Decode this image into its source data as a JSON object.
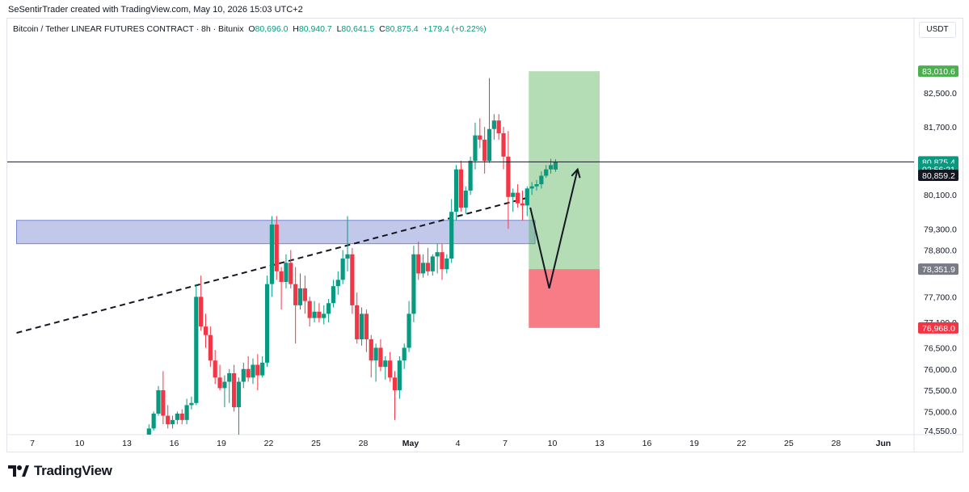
{
  "header": {
    "credit": "SeSentirTrader created with TradingView.com, May 10, 2026 15:03 UTC+2"
  },
  "symbol": {
    "name": "Bitcoin / Tether LINEAR FUTURES CONTRACT · 8h · Bitunix",
    "o_label": "O",
    "o": "80,696.0",
    "h_label": "H",
    "h": "80,940.7",
    "l_label": "L",
    "l": "80,641.5",
    "c_label": "C",
    "c": "80,875.4",
    "change": "+179.4 (+0.22%)"
  },
  "currency": "USDT",
  "brand": {
    "name": "TradingView"
  },
  "colors": {
    "up": "#089981",
    "down": "#f23645",
    "target": "#4caf50",
    "stop": "#f23645"
  },
  "chart_data": {
    "type": "candlestick",
    "interval": "8h",
    "y_ticks": [
      {
        "value": 82500,
        "label": "82,500.0"
      },
      {
        "value": 81700,
        "label": "81,700.0"
      },
      {
        "value": 80100,
        "label": "80,100.0"
      },
      {
        "value": 79300,
        "label": "79,300.0"
      },
      {
        "value": 78800,
        "label": "78,800.0"
      },
      {
        "value": 77700,
        "label": "77,700.0"
      },
      {
        "value": 77100,
        "label": "77,100.0"
      },
      {
        "value": 76500,
        "label": "76,500.0"
      },
      {
        "value": 76000,
        "label": "76,000.0"
      },
      {
        "value": 75500,
        "label": "75,500.0"
      },
      {
        "value": 75000,
        "label": "75,000.0"
      },
      {
        "value": 74550,
        "label": "74,550.0"
      }
    ],
    "x_ticks": [
      {
        "day": 7,
        "label": "7"
      },
      {
        "day": 10,
        "label": "10"
      },
      {
        "day": 13,
        "label": "13"
      },
      {
        "day": 16,
        "label": "16"
      },
      {
        "day": 19,
        "label": "19"
      },
      {
        "day": 22,
        "label": "22"
      },
      {
        "day": 25,
        "label": "25"
      },
      {
        "day": 28,
        "label": "28"
      },
      {
        "day": 31,
        "label": "May"
      },
      {
        "day": 34,
        "label": "4"
      },
      {
        "day": 37,
        "label": "7"
      },
      {
        "day": 40,
        "label": "10"
      },
      {
        "day": 43,
        "label": "13"
      },
      {
        "day": 46,
        "label": "16"
      },
      {
        "day": 49,
        "label": "19"
      },
      {
        "day": 52,
        "label": "22"
      },
      {
        "day": 55,
        "label": "25"
      },
      {
        "day": 58,
        "label": "28"
      },
      {
        "day": 61,
        "label": "Jun"
      }
    ],
    "price_labels": [
      {
        "value": 83010.6,
        "label": "83,010.6",
        "color": "#4caf50",
        "text_color": "#ffffff"
      },
      {
        "value": 80875.4,
        "label": "80,875.4",
        "color": "#089981",
        "text_color": "#ffffff"
      },
      {
        "value": 80705,
        "label": "02:56:21",
        "color": "#089981",
        "text_color": "#ffffff"
      },
      {
        "value": 80561,
        "label": "80,859.2",
        "color": "#131722",
        "text_color": "#ffffff"
      },
      {
        "value": 78351.9,
        "label": "78,351.9",
        "color": "#787b86",
        "text_color": "#ffffff"
      },
      {
        "value": 76968.0,
        "label": "76,968.0",
        "color": "#f23645",
        "text_color": "#ffffff"
      }
    ],
    "last_price": 80875.4,
    "position": {
      "entry": 78351.9,
      "target": 83010.6,
      "stop": 76968.0,
      "day_start": 38.5,
      "day_end": 43.0
    },
    "support_zone": {
      "top": 79500,
      "bottom": 78950,
      "day_start": 6.0,
      "day_end": 38.9
    },
    "trendline": [
      {
        "day": 6.0,
        "price": 76850
      },
      {
        "day": 38.6,
        "price": 80050
      }
    ],
    "projection": [
      {
        "day": 38.6,
        "price": 79800
      },
      {
        "day": 39.8,
        "price": 77900
      },
      {
        "day": 41.6,
        "price": 80700
      }
    ],
    "candles": [
      {
        "day": 14.4,
        "o": 74400,
        "h": 74700,
        "l": 74350,
        "c": 74600
      },
      {
        "day": 14.7,
        "o": 74600,
        "h": 75000,
        "l": 74550,
        "c": 74950
      },
      {
        "day": 15.0,
        "o": 74950,
        "h": 75600,
        "l": 74900,
        "c": 75500
      },
      {
        "day": 15.3,
        "o": 75500,
        "h": 75950,
        "l": 74700,
        "c": 74900
      },
      {
        "day": 15.6,
        "o": 74900,
        "h": 75150,
        "l": 74600,
        "c": 74700
      },
      {
        "day": 15.9,
        "o": 74700,
        "h": 74900,
        "l": 74600,
        "c": 74800
      },
      {
        "day": 16.2,
        "o": 74800,
        "h": 75000,
        "l": 74700,
        "c": 74950
      },
      {
        "day": 16.5,
        "o": 74950,
        "h": 75050,
        "l": 74700,
        "c": 74800
      },
      {
        "day": 16.8,
        "o": 74800,
        "h": 75300,
        "l": 74700,
        "c": 75150
      },
      {
        "day": 17.1,
        "o": 75150,
        "h": 75350,
        "l": 75050,
        "c": 75200
      },
      {
        "day": 17.4,
        "o": 75200,
        "h": 78000,
        "l": 75150,
        "c": 77700
      },
      {
        "day": 17.7,
        "o": 77700,
        "h": 78200,
        "l": 76900,
        "c": 77000
      },
      {
        "day": 18.0,
        "o": 77000,
        "h": 77300,
        "l": 76500,
        "c": 76800
      },
      {
        "day": 18.3,
        "o": 76800,
        "h": 77000,
        "l": 76050,
        "c": 76200
      },
      {
        "day": 18.6,
        "o": 76200,
        "h": 76450,
        "l": 75650,
        "c": 75800
      },
      {
        "day": 18.9,
        "o": 75800,
        "h": 76100,
        "l": 75500,
        "c": 75550
      },
      {
        "day": 19.2,
        "o": 75550,
        "h": 75850,
        "l": 75100,
        "c": 75700
      },
      {
        "day": 19.5,
        "o": 75700,
        "h": 76000,
        "l": 75200,
        "c": 75900
      },
      {
        "day": 19.8,
        "o": 75900,
        "h": 76100,
        "l": 75000,
        "c": 75100
      },
      {
        "day": 20.1,
        "o": 75100,
        "h": 75800,
        "l": 74400,
        "c": 75700
      },
      {
        "day": 20.4,
        "o": 75700,
        "h": 76150,
        "l": 75550,
        "c": 76000
      },
      {
        "day": 20.7,
        "o": 76000,
        "h": 76300,
        "l": 75700,
        "c": 75800
      },
      {
        "day": 21.0,
        "o": 75800,
        "h": 76250,
        "l": 75650,
        "c": 76100
      },
      {
        "day": 21.3,
        "o": 76100,
        "h": 76350,
        "l": 75500,
        "c": 75850
      },
      {
        "day": 21.6,
        "o": 75850,
        "h": 76300,
        "l": 75800,
        "c": 76150
      },
      {
        "day": 21.9,
        "o": 76150,
        "h": 78200,
        "l": 76050,
        "c": 78000
      },
      {
        "day": 22.2,
        "o": 78000,
        "h": 79600,
        "l": 77700,
        "c": 79400
      },
      {
        "day": 22.5,
        "o": 79400,
        "h": 79600,
        "l": 78100,
        "c": 78300
      },
      {
        "day": 22.8,
        "o": 78300,
        "h": 78400,
        "l": 77400,
        "c": 78050
      },
      {
        "day": 23.1,
        "o": 78050,
        "h": 78700,
        "l": 77900,
        "c": 78500
      },
      {
        "day": 23.4,
        "o": 78500,
        "h": 78800,
        "l": 77900,
        "c": 78000
      },
      {
        "day": 23.7,
        "o": 78000,
        "h": 78400,
        "l": 76600,
        "c": 77500
      },
      {
        "day": 24.0,
        "o": 77500,
        "h": 78250,
        "l": 77400,
        "c": 77900
      },
      {
        "day": 24.3,
        "o": 77900,
        "h": 78200,
        "l": 77300,
        "c": 77600
      },
      {
        "day": 24.6,
        "o": 77600,
        "h": 77700,
        "l": 77000,
        "c": 77200
      },
      {
        "day": 24.9,
        "o": 77200,
        "h": 77600,
        "l": 77100,
        "c": 77350
      },
      {
        "day": 25.2,
        "o": 77350,
        "h": 77550,
        "l": 77100,
        "c": 77200
      },
      {
        "day": 25.5,
        "o": 77200,
        "h": 77500,
        "l": 77050,
        "c": 77300
      },
      {
        "day": 25.8,
        "o": 77300,
        "h": 77650,
        "l": 77100,
        "c": 77550
      },
      {
        "day": 26.1,
        "o": 77550,
        "h": 78100,
        "l": 77450,
        "c": 77950
      },
      {
        "day": 26.4,
        "o": 77950,
        "h": 78300,
        "l": 77750,
        "c": 78100
      },
      {
        "day": 26.7,
        "o": 78100,
        "h": 78800,
        "l": 78000,
        "c": 78600
      },
      {
        "day": 27.0,
        "o": 78600,
        "h": 79600,
        "l": 78300,
        "c": 78700
      },
      {
        "day": 27.3,
        "o": 78700,
        "h": 78850,
        "l": 77300,
        "c": 77500
      },
      {
        "day": 27.6,
        "o": 77500,
        "h": 77800,
        "l": 76600,
        "c": 76700
      },
      {
        "day": 27.9,
        "o": 76700,
        "h": 77450,
        "l": 76550,
        "c": 77300
      },
      {
        "day": 28.2,
        "o": 77300,
        "h": 77400,
        "l": 76400,
        "c": 76700
      },
      {
        "day": 28.5,
        "o": 76700,
        "h": 76800,
        "l": 75800,
        "c": 76200
      },
      {
        "day": 28.8,
        "o": 76200,
        "h": 76600,
        "l": 75700,
        "c": 76500
      },
      {
        "day": 29.1,
        "o": 76500,
        "h": 76700,
        "l": 75950,
        "c": 76050
      },
      {
        "day": 29.4,
        "o": 76050,
        "h": 76300,
        "l": 75750,
        "c": 76200
      },
      {
        "day": 29.7,
        "o": 76200,
        "h": 76400,
        "l": 75700,
        "c": 75800
      },
      {
        "day": 30.0,
        "o": 75800,
        "h": 75950,
        "l": 74800,
        "c": 75500
      },
      {
        "day": 30.3,
        "o": 75500,
        "h": 76300,
        "l": 75300,
        "c": 76200
      },
      {
        "day": 30.6,
        "o": 76200,
        "h": 76600,
        "l": 76000,
        "c": 76500
      },
      {
        "day": 30.9,
        "o": 76500,
        "h": 77600,
        "l": 76400,
        "c": 77300
      },
      {
        "day": 31.2,
        "o": 77300,
        "h": 78900,
        "l": 77100,
        "c": 78700
      },
      {
        "day": 31.5,
        "o": 78700,
        "h": 79000,
        "l": 78100,
        "c": 78250
      },
      {
        "day": 31.8,
        "o": 78250,
        "h": 78700,
        "l": 78150,
        "c": 78500
      },
      {
        "day": 32.1,
        "o": 78500,
        "h": 78850,
        "l": 78200,
        "c": 78300
      },
      {
        "day": 32.4,
        "o": 78300,
        "h": 78700,
        "l": 78200,
        "c": 78650
      },
      {
        "day": 32.7,
        "o": 78650,
        "h": 78950,
        "l": 78250,
        "c": 78750
      },
      {
        "day": 33.0,
        "o": 78750,
        "h": 78950,
        "l": 78100,
        "c": 78350
      },
      {
        "day": 33.3,
        "o": 78350,
        "h": 78700,
        "l": 78250,
        "c": 78600
      },
      {
        "day": 33.6,
        "o": 78600,
        "h": 80000,
        "l": 78500,
        "c": 79700
      },
      {
        "day": 33.9,
        "o": 79700,
        "h": 80800,
        "l": 79500,
        "c": 80700
      },
      {
        "day": 34.2,
        "o": 80700,
        "h": 80900,
        "l": 79700,
        "c": 79800
      },
      {
        "day": 34.5,
        "o": 79800,
        "h": 80300,
        "l": 79650,
        "c": 80200
      },
      {
        "day": 34.8,
        "o": 80200,
        "h": 81000,
        "l": 80100,
        "c": 80900
      },
      {
        "day": 35.1,
        "o": 80900,
        "h": 81800,
        "l": 80700,
        "c": 81500
      },
      {
        "day": 35.4,
        "o": 81500,
        "h": 81900,
        "l": 81200,
        "c": 81400
      },
      {
        "day": 35.7,
        "o": 81400,
        "h": 81700,
        "l": 80600,
        "c": 80900
      },
      {
        "day": 36.0,
        "o": 80900,
        "h": 82850,
        "l": 80850,
        "c": 81650
      },
      {
        "day": 36.3,
        "o": 81650,
        "h": 82000,
        "l": 81400,
        "c": 81850
      },
      {
        "day": 36.6,
        "o": 81850,
        "h": 82000,
        "l": 81400,
        "c": 81550
      },
      {
        "day": 36.9,
        "o": 81550,
        "h": 81700,
        "l": 80700,
        "c": 81000
      },
      {
        "day": 37.2,
        "o": 81000,
        "h": 81600,
        "l": 79300,
        "c": 80050
      },
      {
        "day": 37.5,
        "o": 80050,
        "h": 80250,
        "l": 79700,
        "c": 80150
      },
      {
        "day": 37.8,
        "o": 80150,
        "h": 80350,
        "l": 79800,
        "c": 79900
      },
      {
        "day": 38.1,
        "o": 79900,
        "h": 80200,
        "l": 79500,
        "c": 79850
      },
      {
        "day": 38.4,
        "o": 79850,
        "h": 80300,
        "l": 79600,
        "c": 80250
      },
      {
        "day": 38.7,
        "o": 80250,
        "h": 80400,
        "l": 80100,
        "c": 80300
      },
      {
        "day": 39.0,
        "o": 80300,
        "h": 80450,
        "l": 80200,
        "c": 80350
      },
      {
        "day": 39.3,
        "o": 80350,
        "h": 80650,
        "l": 80250,
        "c": 80550
      },
      {
        "day": 39.6,
        "o": 80550,
        "h": 80800,
        "l": 80500,
        "c": 80700
      },
      {
        "day": 39.9,
        "o": 80700,
        "h": 80950,
        "l": 80600,
        "c": 80800
      },
      {
        "day": 40.2,
        "o": 80696.0,
        "h": 80940.7,
        "l": 80641.5,
        "c": 80875.4
      }
    ]
  }
}
